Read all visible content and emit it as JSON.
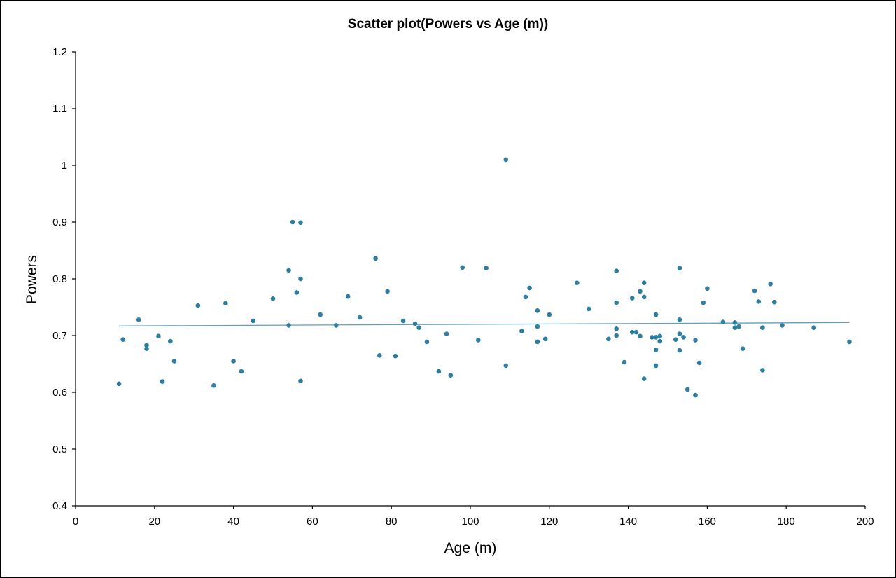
{
  "chart_data": {
    "type": "scatter",
    "title": "Scatter plot(Powers vs Age (m))",
    "xlabel": "Age (m)",
    "ylabel": "Powers",
    "xlim": [
      0,
      200
    ],
    "ylim": [
      0.4,
      1.2
    ],
    "xticks": [
      "0",
      "20",
      "40",
      "60",
      "80",
      "100",
      "120",
      "140",
      "160",
      "180",
      "200"
    ],
    "yticks": [
      "0.4",
      "0.5",
      "0.6",
      "0.7",
      "0.8",
      "0.9",
      "1",
      "1.1",
      "1.2"
    ],
    "grid": false,
    "legend": "none",
    "point_color": "#2e7ea1",
    "trendline_color": "#5fa0c4",
    "trendline": {
      "x": [
        11,
        196
      ],
      "y": [
        0.717,
        0.723
      ]
    },
    "series": [
      {
        "x": [
          11,
          12,
          16,
          18,
          18,
          21,
          22,
          24,
          25,
          31,
          35,
          38,
          40,
          42,
          45,
          50,
          54,
          54,
          55,
          56,
          57,
          57,
          57,
          62,
          66,
          69,
          72,
          76,
          77,
          79,
          81,
          83,
          86,
          87,
          89,
          92,
          94,
          95,
          98,
          102,
          104,
          109,
          109,
          113,
          114,
          115,
          117,
          117,
          117,
          119,
          120,
          127,
          130,
          135,
          137,
          137,
          137,
          137,
          139,
          141,
          141,
          142,
          143,
          143,
          144,
          144,
          144,
          146,
          147,
          147,
          147,
          147,
          148,
          148,
          152,
          153,
          153,
          153,
          153,
          154,
          155,
          157,
          157,
          158,
          159,
          160,
          164,
          167,
          167,
          168,
          169,
          172,
          173,
          174,
          174,
          176,
          177,
          179,
          187,
          196
        ],
        "y": [
          0.615,
          0.693,
          0.728,
          0.683,
          0.677,
          0.699,
          0.619,
          0.69,
          0.655,
          0.753,
          0.612,
          0.757,
          0.655,
          0.637,
          0.726,
          0.765,
          0.815,
          0.718,
          0.9,
          0.776,
          0.899,
          0.8,
          0.62,
          0.737,
          0.718,
          0.769,
          0.732,
          0.836,
          0.665,
          0.778,
          0.664,
          0.726,
          0.721,
          0.714,
          0.689,
          0.637,
          0.703,
          0.63,
          0.82,
          0.692,
          0.819,
          1.01,
          0.647,
          0.708,
          0.768,
          0.784,
          0.744,
          0.716,
          0.689,
          0.694,
          0.737,
          0.793,
          0.747,
          0.694,
          0.814,
          0.758,
          0.712,
          0.7,
          0.653,
          0.766,
          0.706,
          0.706,
          0.778,
          0.699,
          0.793,
          0.768,
          0.624,
          0.697,
          0.737,
          0.675,
          0.647,
          0.697,
          0.699,
          0.69,
          0.693,
          0.819,
          0.728,
          0.703,
          0.674,
          0.697,
          0.605,
          0.692,
          0.595,
          0.652,
          0.758,
          0.783,
          0.724,
          0.723,
          0.714,
          0.716,
          0.677,
          0.779,
          0.76,
          0.714,
          0.639,
          0.791,
          0.759,
          0.718,
          0.714,
          0.689
        ]
      }
    ]
  }
}
